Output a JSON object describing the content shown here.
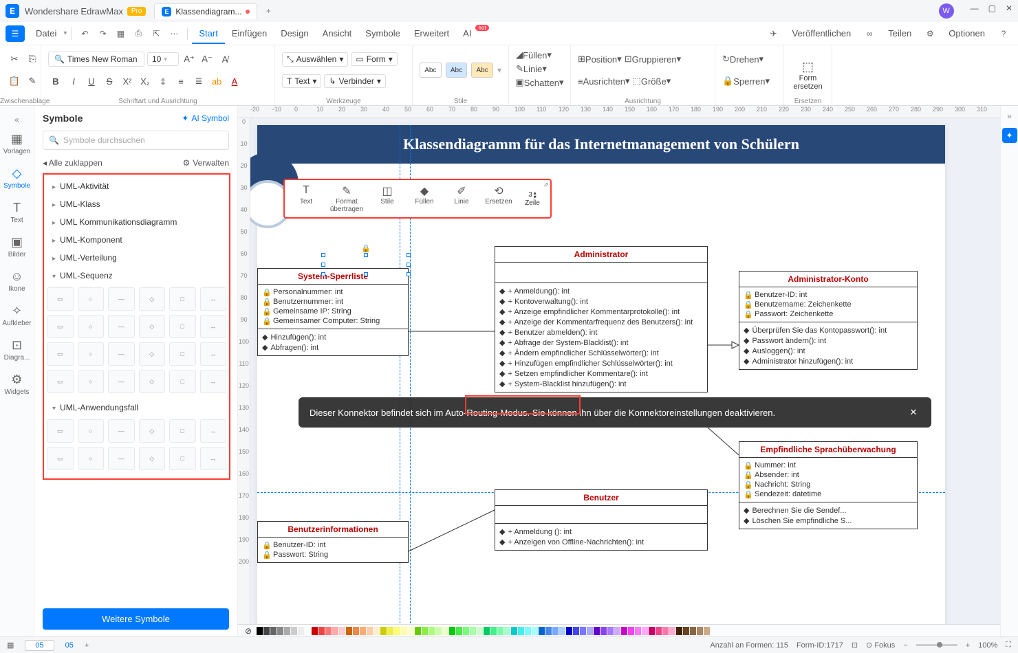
{
  "app": {
    "name": "Wondershare EdrawMax",
    "badge": "Pro"
  },
  "tab": {
    "title": "Klassendiagram..."
  },
  "fileMenu": "Datei",
  "menu": [
    "Start",
    "Einfügen",
    "Design",
    "Ansicht",
    "Symbole",
    "Erweitert",
    "AI"
  ],
  "activeMenu": "Start",
  "menuRight": {
    "publish": "Veröffentlichen",
    "share": "Teilen",
    "options": "Optionen"
  },
  "ribbon": {
    "clipboard": "Zwischenablage",
    "fontGroup": "Schriftart und Ausrichtung",
    "font": "Times New Roman",
    "size": "10",
    "tools": "Werkzeuge",
    "select": "Auswählen",
    "form": "Form",
    "text": "Text",
    "verbinder": "Verbinder",
    "styles": "Stile",
    "fill": "Füllen",
    "line": "Linie",
    "shadow": "Schatten",
    "layout": "Ausrichtung",
    "position": "Position",
    "align": "Ausrichten",
    "group": "Gruppieren",
    "sizeBtn": "Größe",
    "rotate": "Drehen",
    "lock": "Sperren",
    "replace": "Form\nersetzen",
    "replaceLabel": "Ersetzen"
  },
  "leftNav": [
    {
      "icon": "▦",
      "label": "Vorlagen"
    },
    {
      "icon": "◇",
      "label": "Symbole"
    },
    {
      "icon": "T",
      "label": "Text"
    },
    {
      "icon": "▣",
      "label": "Bilder"
    },
    {
      "icon": "☺",
      "label": "Ikone"
    },
    {
      "icon": "✧",
      "label": "Aufkleber"
    },
    {
      "icon": "⊡",
      "label": "Diagra..."
    },
    {
      "icon": "⚙",
      "label": "Widgets"
    }
  ],
  "symbolPanel": {
    "title": "Symbole",
    "ai": "AI Symbol",
    "search": "Symbole durchsuchen",
    "collapse": "Alle zuklappen",
    "manage": "Verwalten",
    "cats": [
      "UML-Aktivität",
      "UML-Klass",
      "UML Kommunikationsdiagramm",
      "UML-Komponent",
      "UML-Verteilung",
      "UML-Sequenz",
      "UML-Anwendungsfall"
    ],
    "more": "Weitere Symbole"
  },
  "floatToolbar": {
    "text": "Text",
    "format": "Format\nübertragen",
    "stile": "Stile",
    "fill": "Füllen",
    "line": "Linie",
    "replace": "Ersetzen",
    "zeile": "Zeile",
    "zeileVal": "3"
  },
  "diagram": {
    "title": "Klassendiagramm für das Internetmanagement von Schülern",
    "admin": {
      "name": "Administrator",
      "ops": [
        "+ Anmeldung(): int",
        "+ Kontoverwaltung(): int",
        "+ Anzeige empfindlicher Kommentarprotokolle(): int",
        "+ Anzeige der Kommentarfrequenz des Benutzers(): int",
        "+ Benutzer abmelden(): int",
        "+ Abfrage der System-Blacklist(): int",
        "+ Ändern empfindlicher Schlüsselwörter(): int",
        "+ Hinzufügen empfindlicher Schlüsselwörter(): int",
        "+ Setzen empfindlicher Kommentare(): int",
        "+ System-Blacklist hinzufügen(): int"
      ]
    },
    "sys": {
      "name": "System-Sperrliste",
      "attrs": [
        "Personalnummer: int",
        "Benutzernummer: int",
        "Gemeinsame IP: String",
        "Gemeinsamer Computer: String"
      ],
      "ops": [
        "Hinzufügen(): int",
        "Abfragen(): int"
      ]
    },
    "adk": {
      "name": "Administrator-Konto",
      "attrs": [
        "Benutzer-ID: int",
        "Benutzername: Zeichenkette",
        "Passwort: Zeichenkette"
      ],
      "ops": [
        "Überprüfen Sie das Kontopasswort(): int",
        "Passwort ändern(): int",
        "Ausloggen(): int",
        "Administrator hinzufügen(): int"
      ]
    },
    "sens": {
      "name": "Empfindliche Sprachüberwachung",
      "attrs": [
        "Nummer: int",
        "Absender: int",
        "Nachricht: String",
        "Sendezeit: datetime"
      ],
      "ops": [
        "Berechnen Sie die Sendef...",
        "Löschen Sie empfindliche S..."
      ]
    },
    "user": {
      "name": "Benutzer",
      "ops": [
        "+ Anmeldung (): int",
        "+ Anzeigen von Offline-Nachrichten(): int"
      ]
    },
    "binfo": {
      "name": "Benutzerinformationen",
      "attrs": [
        "Benutzer-ID: int",
        "Passwort: String"
      ]
    }
  },
  "toast": "Dieser Konnektor befindet sich im Auto-Routing-Modus. Sie können ihn über die Konnektoreinstellungen deaktivieren.",
  "status": {
    "page1": "05",
    "page2": "05",
    "shapes": "Anzahl an Formen: 115",
    "formId": "Form-ID:1717",
    "focus": "Fokus",
    "zoom": "100%"
  },
  "rulerH": [
    "-20",
    "-10",
    "0",
    "10",
    "20",
    "30",
    "40",
    "50",
    "60",
    "70",
    "80",
    "90",
    "100",
    "110",
    "120",
    "130",
    "140",
    "150",
    "160",
    "170",
    "180",
    "190",
    "200",
    "210",
    "220",
    "230",
    "240",
    "250",
    "260",
    "270",
    "280",
    "290",
    "300",
    "310"
  ],
  "rulerV": [
    "0",
    "10",
    "20",
    "30",
    "40",
    "50",
    "60",
    "70",
    "80",
    "90",
    "100",
    "110",
    "120",
    "130",
    "140",
    "150",
    "160",
    "170",
    "180",
    "190",
    "200"
  ],
  "colors": [
    "#000",
    "#444",
    "#666",
    "#888",
    "#aaa",
    "#ccc",
    "#eee",
    "#fff",
    "#c00",
    "#e44",
    "#f77",
    "#faa",
    "#fcc",
    "#c60",
    "#e84",
    "#fa7",
    "#fca",
    "#fec",
    "#cc0",
    "#ee4",
    "#ff7",
    "#ffa",
    "#ffc",
    "#6c0",
    "#8e4",
    "#af7",
    "#cfa",
    "#efc",
    "#0c0",
    "#4e4",
    "#7f7",
    "#afa",
    "#cfc",
    "#0c6",
    "#4e8",
    "#7fa",
    "#afc",
    "#0cc",
    "#4ee",
    "#7ff",
    "#aff",
    "#06c",
    "#48e",
    "#7af",
    "#acf",
    "#00c",
    "#44e",
    "#77f",
    "#aaf",
    "#60c",
    "#84e",
    "#a7f",
    "#caf",
    "#c0c",
    "#e4e",
    "#f7f",
    "#faf",
    "#c06",
    "#e48",
    "#f7a",
    "#fac",
    "#420",
    "#642",
    "#864",
    "#a86",
    "#ca8"
  ]
}
